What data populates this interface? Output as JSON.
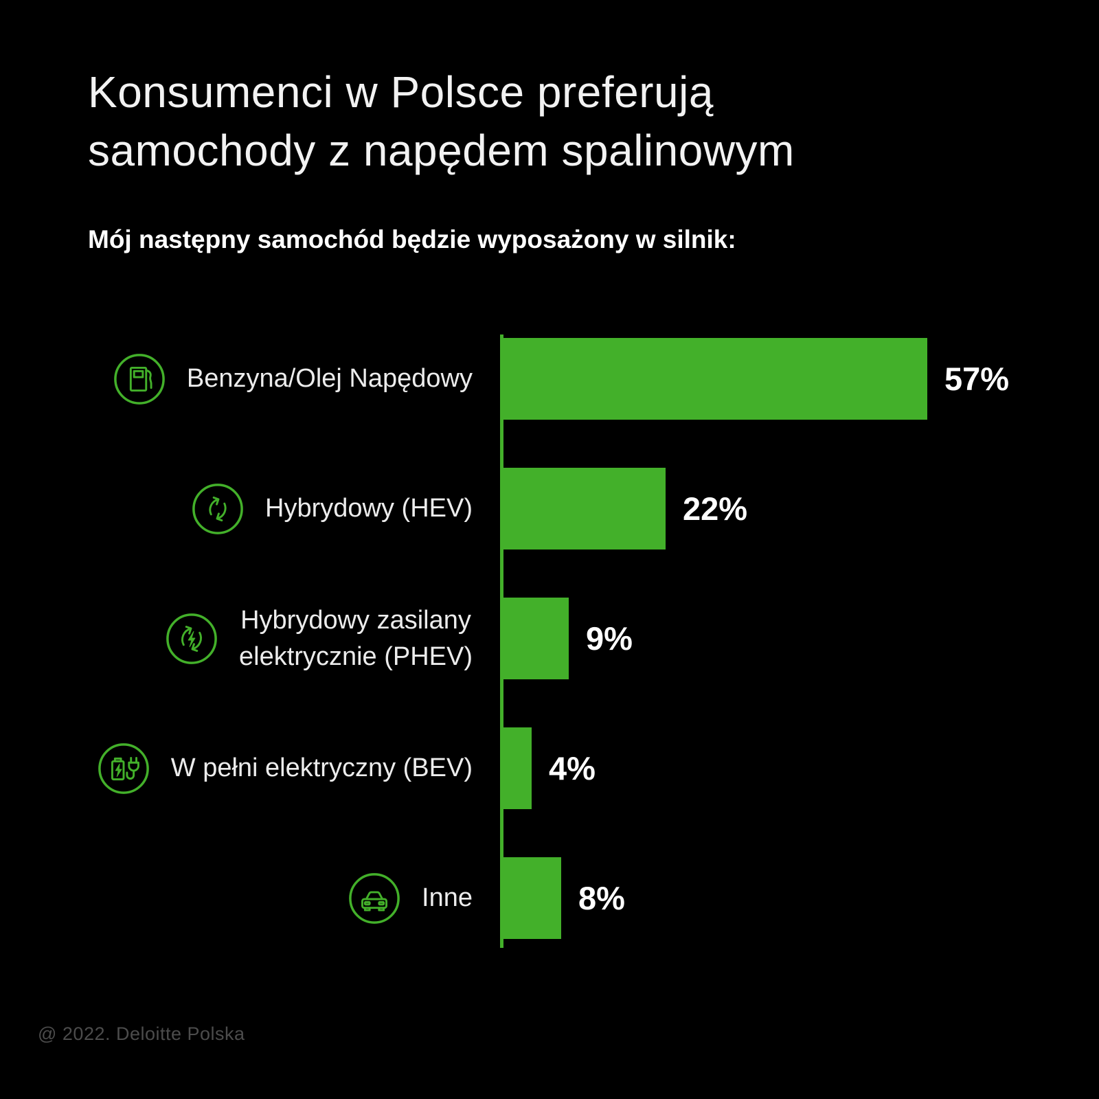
{
  "page": {
    "title_line1": "Konsumenci w Polsce preferują",
    "title_line2": "samochody z napędem spalinowym",
    "subtitle": "Mój następny samochód będzie wyposażony w silnik:",
    "footer": "@ 2022. Deloitte Polska"
  },
  "colors": {
    "background": "#000000",
    "bar_green": "#43B02A",
    "icon_green": "#43B02A",
    "axis_green": "#43B02A",
    "title_text": "#f2f2f2",
    "label_text": "#ececec",
    "value_text": "#ffffff",
    "footer_text": "#4c4c4c"
  },
  "chart_data": {
    "type": "bar",
    "orientation": "horizontal",
    "unit": "%",
    "xlim": [
      0,
      60
    ],
    "grid": false,
    "legend": false,
    "title": "Mój następny samochód będzie wyposażony w silnik:",
    "categories": [
      "Benzyna/Olej Napędowy",
      "Hybrydowy (HEV)",
      "Hybrydowy zasilany elektrycznie (PHEV)",
      "W pełni elektryczny (BEV)",
      "Inne"
    ],
    "values": [
      57,
      22,
      9,
      4,
      8
    ],
    "rows": [
      {
        "label": "Benzyna/Olej Napędowy",
        "label_lines": [
          "Benzyna/Olej Napędowy"
        ],
        "icon": "fuel-pump-icon",
        "value": 57,
        "value_label": "57%"
      },
      {
        "label": "Hybrydowy (HEV)",
        "label_lines": [
          "Hybrydowy (HEV)"
        ],
        "icon": "hybrid-cycle-icon",
        "value": 22,
        "value_label": "22%"
      },
      {
        "label": "Hybrydowy zasilany elektrycznie (PHEV)",
        "label_lines": [
          "Hybrydowy zasilany",
          "elektrycznie (PHEV)"
        ],
        "icon": "plugin-hybrid-cycle-bolt-icon",
        "value": 9,
        "value_label": "9%"
      },
      {
        "label": "W pełni elektryczny (BEV)",
        "label_lines": [
          "W pełni elektryczny (BEV)"
        ],
        "icon": "battery-plug-icon",
        "value": 4,
        "value_label": "4%"
      },
      {
        "label": "Inne",
        "label_lines": [
          "Inne"
        ],
        "icon": "car-icon",
        "value": 8,
        "value_label": "8%"
      }
    ]
  }
}
